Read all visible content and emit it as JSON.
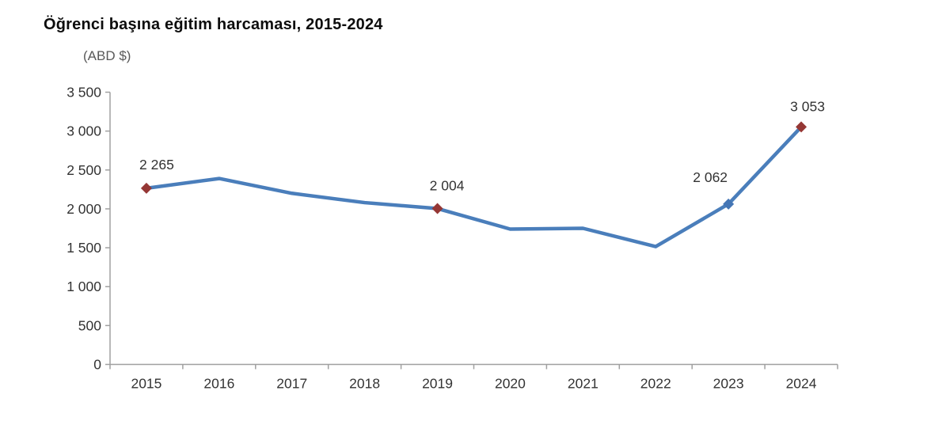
{
  "chart": {
    "title": "Öğrenci başına eğitim harcaması, 2015-2024",
    "unit_label": "(ABD $)"
  },
  "chart_data": {
    "type": "line",
    "title": "Öğrenci başına eğitim harcaması, 2015-2024",
    "unit_label": "(ABD $)",
    "categories": [
      "2015",
      "2016",
      "2017",
      "2018",
      "2019",
      "2020",
      "2021",
      "2022",
      "2023",
      "2024"
    ],
    "series": [
      {
        "values": [
          2265,
          2390,
          2200,
          2080,
          2004,
          1740,
          1750,
          1515,
          2062,
          3053
        ]
      }
    ],
    "point_labels": [
      {
        "index": 0,
        "text": "2 265"
      },
      {
        "index": 4,
        "text": "2 004"
      },
      {
        "index": 8,
        "text": "2 062"
      },
      {
        "index": 9,
        "text": "3 053"
      }
    ],
    "markers": [
      {
        "index": 0,
        "color": "#953735"
      },
      {
        "index": 4,
        "color": "#953735"
      },
      {
        "index": 8,
        "color": "#4576b5"
      },
      {
        "index": 9,
        "color": "#953735"
      }
    ],
    "ylim": [
      0,
      3500
    ],
    "ytick_step": 500,
    "ytick_labels": [
      "0",
      "500",
      "1 000",
      "1 500",
      "2 000",
      "2 500",
      "3 000",
      "3 500"
    ],
    "xlabel": "",
    "ylabel": "(ABD $)",
    "grid": false,
    "legend": "none",
    "line_color": "#4a7ebb",
    "axis_color": "#a0a0a0",
    "tick_label_color": "#333333",
    "data_label_color": "#333333"
  }
}
